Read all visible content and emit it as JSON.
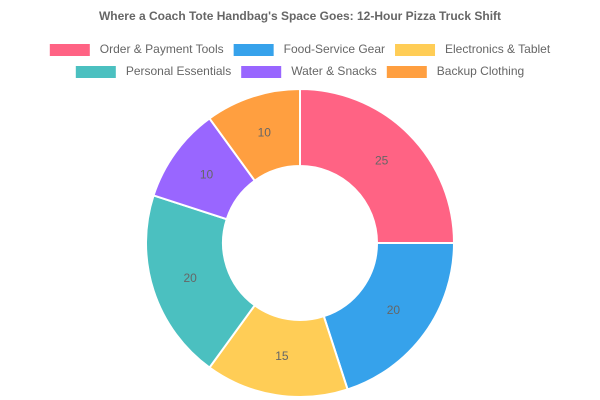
{
  "chart_data": {
    "type": "doughnut",
    "title": "Where a Coach Tote Handbag's Space Goes: 12-Hour Pizza Truck Shift",
    "categories": [
      "Order & Payment Tools",
      "Food-Service Gear",
      "Electronics & Tablet",
      "Personal Essentials",
      "Water & Snacks",
      "Backup Clothing"
    ],
    "values": [
      25,
      20,
      15,
      20,
      10,
      10
    ],
    "colors": [
      "#ff6384",
      "#36a2eb",
      "#ffcd56",
      "#4bc0c0",
      "#9966ff",
      "#ff9f40"
    ],
    "legend": "top"
  }
}
